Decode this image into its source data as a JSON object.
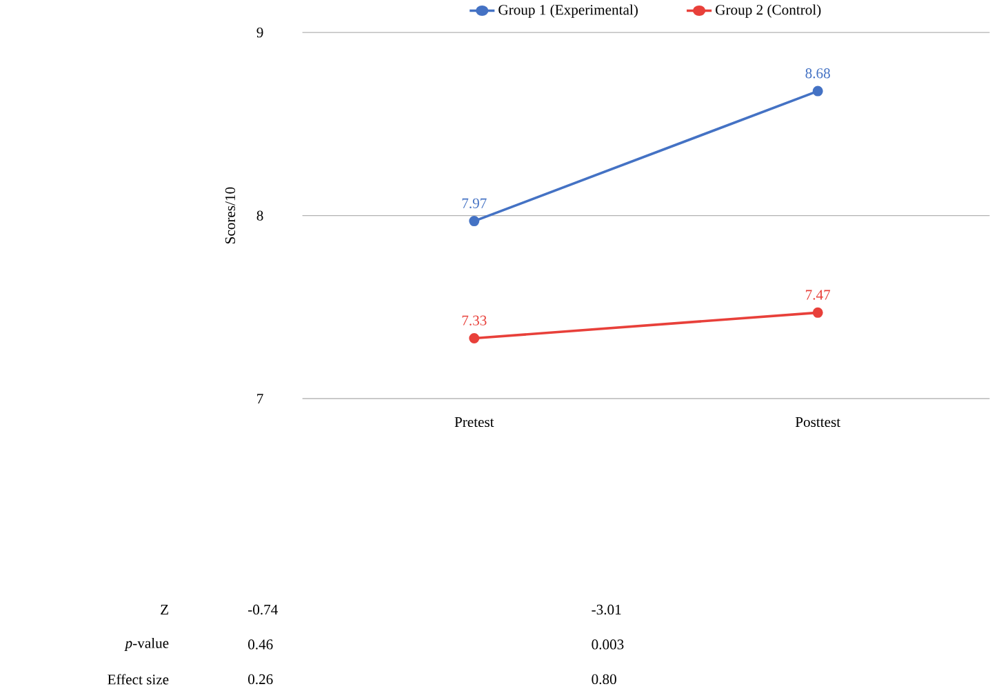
{
  "chart_data": {
    "type": "line",
    "ylabel": "Scores/10",
    "categories": [
      "Pretest",
      "Posttest"
    ],
    "series": [
      {
        "name": "Group 1 (Experimental)",
        "color": "#4472c4",
        "values": [
          7.97,
          8.68
        ]
      },
      {
        "name": "Group 2 (Control)",
        "color": "#e8403a",
        "values": [
          7.33,
          7.47
        ]
      }
    ],
    "ylim": [
      7,
      9
    ],
    "yticks": [
      7,
      8,
      9
    ],
    "grid": "y",
    "legend": "top",
    "marker": "circle",
    "line_style": "solid",
    "data_labels": true,
    "annotations": [
      "Z",
      "-0.74",
      "-3.01",
      "*p*-value",
      "0.46",
      "0.003",
      "Effect size",
      "0.26",
      "0.80"
    ]
  }
}
